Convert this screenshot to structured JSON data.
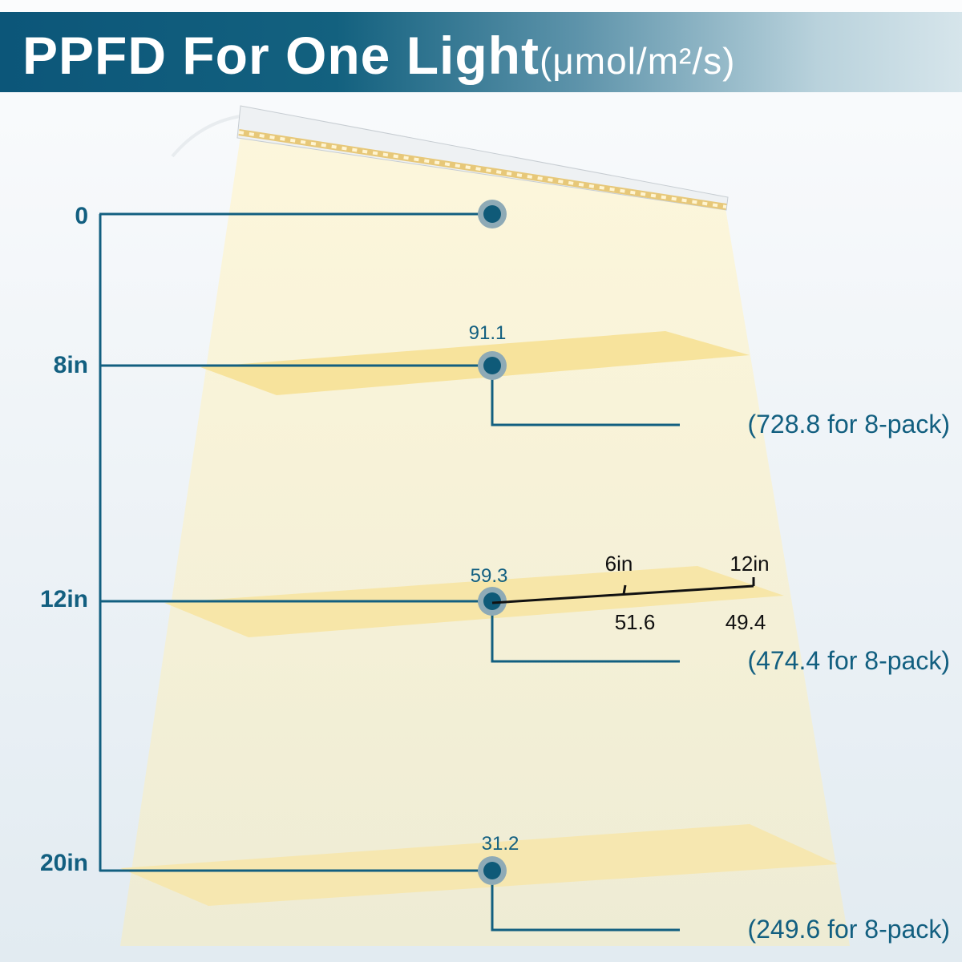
{
  "header": {
    "title": "PPFD For One Light",
    "unit": "(μmol/m²/s)"
  },
  "colors": {
    "line": "#125f80",
    "dot": "#0f5a78",
    "dot_ring": "#8eaab6",
    "beam": "#f6dd8e",
    "header": "#0c5679"
  },
  "heights": [
    {
      "label": "0",
      "value": "",
      "pack": ""
    },
    {
      "label": "8in",
      "value": "91.1",
      "pack": "(728.8 for 8-pack)"
    },
    {
      "label": "12in",
      "value": "59.3",
      "pack": "(474.4 for 8-pack)"
    },
    {
      "label": "20in",
      "value": "31.2",
      "pack": "(249.6 for 8-pack)"
    }
  ],
  "offset": {
    "labels": [
      "6in",
      "12in"
    ],
    "values": [
      "51.6",
      "49.4"
    ]
  }
}
